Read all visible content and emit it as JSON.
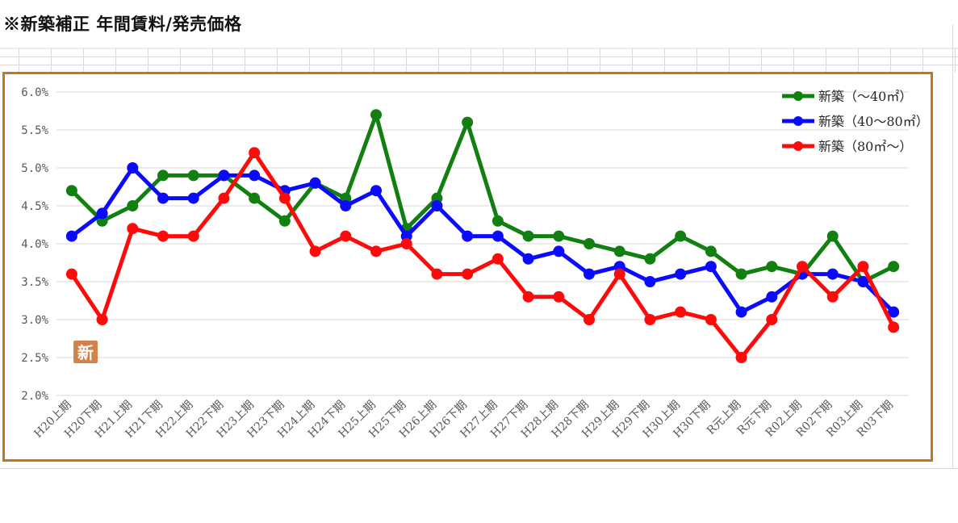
{
  "page": {
    "title": "※新築補正 年間賃料/発売価格"
  },
  "badge": {
    "label": "新",
    "color": "#d2824a"
  },
  "chart_data": {
    "type": "line",
    "title": "",
    "xlabel": "",
    "ylabel": "",
    "ylim": [
      2.0,
      6.0
    ],
    "y_ticks": [
      "2.0%",
      "2.5%",
      "3.0%",
      "3.5%",
      "4.0%",
      "4.5%",
      "5.0%",
      "5.5%",
      "6.0%"
    ],
    "grid": "horizontal",
    "legend_position": "top-right",
    "categories": [
      "H20上期",
      "H20下期",
      "H21上期",
      "H21下期",
      "H22上期",
      "H22下期",
      "H23上期",
      "H23下期",
      "H24上期",
      "H24下期",
      "H25上期",
      "H25下期",
      "H26上期",
      "H26下期",
      "H27上期",
      "H27下期",
      "H28上期",
      "H28下期",
      "H29上期",
      "H29下期",
      "H30上期",
      "H30下期",
      "R元上期",
      "R元下期",
      "R02上期",
      "R02下期",
      "R03上期",
      "R03下期"
    ],
    "series": [
      {
        "name": "新築（～40㎡）",
        "color": "#118011",
        "values": [
          4.7,
          4.3,
          4.5,
          4.9,
          4.9,
          4.9,
          4.6,
          4.3,
          4.8,
          4.6,
          5.7,
          4.2,
          4.6,
          5.6,
          4.3,
          4.1,
          4.1,
          4.0,
          3.9,
          3.8,
          4.1,
          3.9,
          3.6,
          3.7,
          3.6,
          4.1,
          3.5,
          3.7
        ]
      },
      {
        "name": "新築（40～80㎡）",
        "color": "#0a0aff",
        "values": [
          4.1,
          4.4,
          5.0,
          4.6,
          4.6,
          4.9,
          4.9,
          4.7,
          4.8,
          4.5,
          4.7,
          4.1,
          4.5,
          4.1,
          4.1,
          3.8,
          3.9,
          3.6,
          3.7,
          3.5,
          3.6,
          3.7,
          3.1,
          3.3,
          3.6,
          3.6,
          3.5,
          3.1
        ]
      },
      {
        "name": "新築（80㎡～）",
        "color": "#ff0a0a",
        "values": [
          3.6,
          3.0,
          4.2,
          4.1,
          4.1,
          4.6,
          5.2,
          4.6,
          3.9,
          4.1,
          3.9,
          4.0,
          3.6,
          3.6,
          3.8,
          3.3,
          3.3,
          3.0,
          3.6,
          3.0,
          3.1,
          3.0,
          2.5,
          3.0,
          3.7,
          3.3,
          3.7,
          2.9
        ]
      }
    ]
  }
}
